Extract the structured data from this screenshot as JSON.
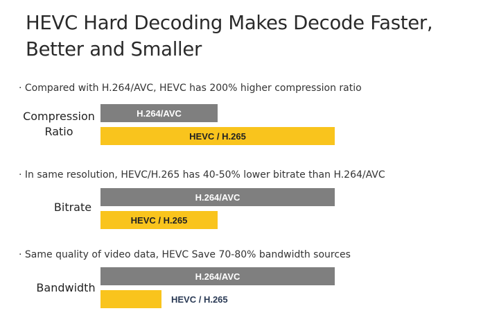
{
  "title_line1": "HEVC Hard Decoding Makes Decode Faster,",
  "title_line2": "Better and Smaller",
  "colors": {
    "h264": "#7f7f7f",
    "hevc": "#f9c41d"
  },
  "chart_data": [
    {
      "type": "bar",
      "orientation": "horizontal",
      "note": "· Compared with H.264/AVC, HEVC has 200% higher compression ratio",
      "metric_line1": "Compression",
      "metric_line2": "Ratio",
      "series": [
        {
          "name": "H.264/AVC",
          "value": 1.0
        },
        {
          "name": "HEVC / H.265",
          "value": 2.0
        }
      ]
    },
    {
      "type": "bar",
      "orientation": "horizontal",
      "note": "· In same resolution, HEVC/H.265 has 40-50% lower bitrate than H.264/AVC",
      "metric_line1": "Bitrate",
      "metric_line2": "",
      "series": [
        {
          "name": "H.264/AVC",
          "value": 1.0
        },
        {
          "name": "HEVC / H.265",
          "value": 0.5
        }
      ]
    },
    {
      "type": "bar",
      "orientation": "horizontal",
      "note": "· Same quality of video data, HEVC Save 70-80% bandwidth sources",
      "metric_line1": "Bandwidth",
      "metric_line2": "",
      "series": [
        {
          "name": "H.264/AVC",
          "value": 1.0
        },
        {
          "name": "HEVC / H.265",
          "value": 0.26
        }
      ]
    }
  ]
}
